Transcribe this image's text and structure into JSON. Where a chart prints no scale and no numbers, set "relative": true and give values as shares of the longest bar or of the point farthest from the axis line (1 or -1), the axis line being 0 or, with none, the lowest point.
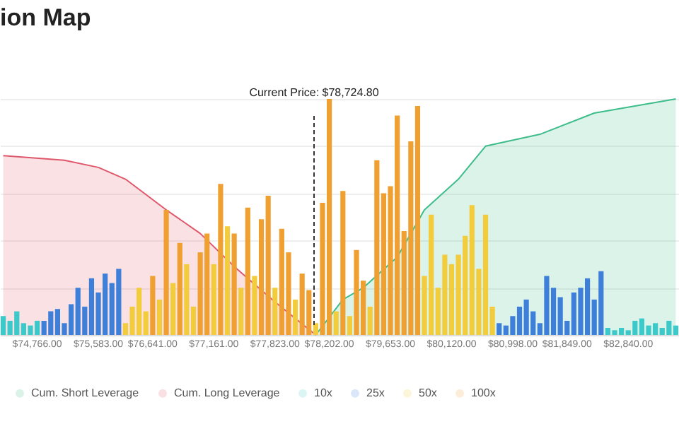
{
  "chart_data": {
    "type": "bar",
    "title": "ion Map",
    "relative": true,
    "grid": "y",
    "legend": "bottom",
    "categories": [
      null,
      null,
      null,
      null,
      null,
      "$74,766.00",
      null,
      null,
      null,
      null,
      null,
      null,
      null,
      null,
      "$75,583.00",
      null,
      null,
      null,
      null,
      null,
      null,
      null,
      "$76,641.00",
      null,
      null,
      null,
      null,
      null,
      null,
      null,
      null,
      "$77,161.00",
      null,
      null,
      null,
      null,
      null,
      null,
      null,
      null,
      "$77,823.00",
      null,
      null,
      null,
      null,
      null,
      null,
      null,
      "$78,202.00",
      null,
      null,
      null,
      null,
      null,
      null,
      null,
      null,
      "$79,653.00",
      null,
      null,
      null,
      null,
      null,
      null,
      null,
      null,
      "$80,120.00",
      null,
      null,
      null,
      null,
      null,
      null,
      null,
      null,
      "$80,998.00",
      null,
      null,
      null,
      null,
      null,
      null,
      null,
      "$81,849.00",
      null,
      null,
      null,
      null,
      null,
      null,
      null,
      null,
      "$82,840.00",
      null,
      null,
      null,
      null,
      null,
      null,
      null
    ],
    "annotations": [
      "Current Price: $78,724.80"
    ],
    "series": [
      {
        "name": "Cum. Short Leverage",
        "type": "area",
        "color": "#3dbd8a",
        "values": [
          null,
          null,
          null,
          null,
          null,
          null,
          null,
          null,
          null,
          null,
          null,
          null,
          null,
          null,
          null,
          null,
          null,
          null,
          null,
          null,
          null,
          null,
          null,
          null,
          null,
          null,
          null,
          null,
          null,
          null,
          null,
          null,
          null,
          null,
          null,
          null,
          null,
          null,
          null,
          null,
          null,
          null,
          null,
          null,
          null,
          null,
          0,
          null,
          null,
          null,
          0.15,
          null,
          null,
          0.2,
          null,
          null,
          null,
          null,
          0.33,
          null,
          null,
          null,
          0.53,
          null,
          null,
          null,
          null,
          0.66,
          null,
          null,
          null,
          0.8,
          null,
          null,
          null,
          null,
          null,
          null,
          null,
          0.85,
          null,
          null,
          null,
          null,
          null,
          null,
          null,
          0.94,
          null,
          null,
          null,
          null,
          null,
          null,
          null,
          null,
          null,
          null,
          null,
          1.0
        ]
      },
      {
        "name": "Cum. Long Leverage",
        "type": "area",
        "color": "#e0576b",
        "values": [
          0.76,
          null,
          null,
          null,
          null,
          null,
          null,
          null,
          null,
          0.74,
          null,
          null,
          null,
          null,
          0.71,
          null,
          null,
          null,
          0.66,
          null,
          null,
          null,
          null,
          null,
          0.53,
          null,
          null,
          null,
          null,
          0.43,
          null,
          null,
          null,
          null,
          0.29,
          null,
          null,
          null,
          null,
          null,
          0.14,
          null,
          null,
          null,
          null,
          null,
          0,
          null,
          null,
          null,
          null,
          null,
          null,
          null,
          null,
          null,
          null,
          null,
          null,
          null,
          null,
          null,
          null,
          null,
          null,
          null,
          null,
          null,
          null,
          null,
          null,
          null,
          null,
          null,
          null,
          null,
          null,
          null,
          null,
          null,
          null,
          null,
          null,
          null,
          null,
          null,
          null,
          null,
          null,
          null,
          null,
          null,
          null,
          null,
          null,
          null,
          null,
          null,
          null,
          null
        ]
      },
      {
        "name": "10x",
        "color": "#3cc9c9",
        "values": [
          0.08,
          0.06,
          0.1,
          0.05,
          0.04,
          0.06,
          null,
          null,
          null,
          null,
          null,
          null,
          null,
          null,
          null,
          null,
          null,
          null,
          null,
          null,
          null,
          null,
          null,
          null,
          null,
          null,
          null,
          null,
          null,
          null,
          null,
          null,
          null,
          null,
          null,
          null,
          null,
          null,
          null,
          null,
          null,
          null,
          null,
          null,
          null,
          null,
          null,
          null,
          null,
          null,
          null,
          null,
          null,
          null,
          null,
          null,
          null,
          null,
          null,
          null,
          null,
          null,
          null,
          null,
          null,
          null,
          null,
          null,
          null,
          null,
          null,
          null,
          null,
          null,
          null,
          null,
          null,
          null,
          null,
          null,
          null,
          null,
          null,
          null,
          null,
          null,
          null,
          null,
          null,
          0.03,
          0.02,
          0.03,
          0.02,
          0.06,
          0.07,
          0.04,
          0.05,
          0.03,
          0.06,
          0.04
        ]
      },
      {
        "name": "25x",
        "color": "#3d7fd9",
        "values": [
          null,
          null,
          null,
          null,
          null,
          null,
          0.06,
          0.1,
          0.11,
          0.05,
          0.13,
          0.2,
          0.12,
          0.24,
          0.18,
          0.26,
          0.22,
          0.28,
          null,
          null,
          null,
          null,
          null,
          null,
          null,
          null,
          null,
          null,
          null,
          null,
          null,
          null,
          null,
          null,
          null,
          null,
          null,
          null,
          null,
          null,
          null,
          null,
          null,
          null,
          null,
          null,
          null,
          null,
          null,
          null,
          null,
          null,
          null,
          null,
          null,
          null,
          null,
          null,
          null,
          null,
          null,
          null,
          null,
          null,
          null,
          null,
          null,
          null,
          null,
          null,
          null,
          null,
          null,
          0.05,
          0.04,
          0.08,
          0.12,
          0.15,
          0.1,
          0.05,
          0.25,
          0.2,
          0.16,
          0.06,
          0.18,
          0.2,
          0.24,
          0.15,
          0.27,
          null,
          null,
          null,
          null,
          null,
          null,
          null,
          null,
          null,
          null,
          null
        ]
      },
      {
        "name": "50x",
        "color": "#f2cc3a",
        "values": [
          null,
          null,
          null,
          null,
          null,
          null,
          null,
          null,
          null,
          null,
          null,
          null,
          null,
          null,
          null,
          null,
          null,
          null,
          0.05,
          0.12,
          0.2,
          0.1,
          null,
          0.15,
          null,
          0.22,
          null,
          0.3,
          0.12,
          null,
          null,
          0.3,
          null,
          0.46,
          null,
          0.2,
          null,
          0.25,
          null,
          null,
          0.2,
          null,
          null,
          0.15,
          null,
          null,
          0.05,
          null,
          null,
          0.1,
          null,
          0.08,
          null,
          null,
          0.12,
          null,
          null,
          null,
          null,
          null,
          null,
          null,
          0.25,
          0.51,
          0.2,
          0.34,
          0.3,
          0.34,
          0.42,
          0.55,
          0.28,
          0.51,
          0.12,
          null,
          null,
          null,
          null,
          null,
          null,
          null,
          null,
          null,
          null,
          null,
          null,
          null,
          null,
          null,
          null,
          null,
          null,
          null,
          null,
          null,
          null,
          null,
          null,
          null,
          null,
          null
        ]
      },
      {
        "name": "100x",
        "color": "#f0a030",
        "values": [
          null,
          null,
          null,
          null,
          null,
          null,
          null,
          null,
          null,
          null,
          null,
          null,
          null,
          null,
          null,
          null,
          null,
          null,
          null,
          null,
          null,
          null,
          0.25,
          null,
          0.53,
          null,
          0.39,
          null,
          null,
          0.35,
          0.43,
          null,
          0.64,
          null,
          0.43,
          null,
          0.54,
          null,
          0.49,
          0.59,
          null,
          0.45,
          0.35,
          null,
          0.26,
          0.19,
          null,
          0.56,
          1.0,
          null,
          0.61,
          null,
          0.36,
          0.23,
          null,
          0.74,
          0.6,
          0.63,
          0.93,
          0.44,
          0.82,
          0.97,
          null,
          null,
          null,
          null,
          null,
          null,
          null,
          null,
          null,
          null,
          null,
          null,
          null,
          null,
          null,
          null,
          null,
          null,
          null,
          null,
          null,
          null,
          null,
          null,
          null,
          null,
          null,
          null,
          null,
          null,
          null,
          null,
          null,
          null,
          null,
          null,
          null,
          null
        ]
      }
    ]
  }
}
